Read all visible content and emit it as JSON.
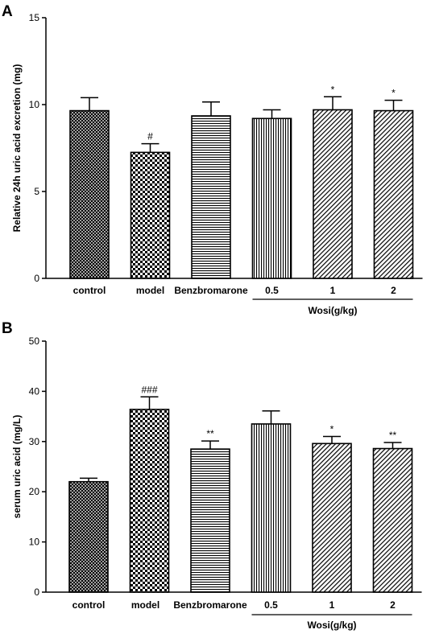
{
  "chart_data": [
    {
      "panel": "A",
      "type": "bar",
      "ylabel": "Relative 24h uric acid excretion (mg)",
      "ylim": [
        0,
        15
      ],
      "yticks": [
        0,
        5,
        10,
        15
      ],
      "categories": [
        "control",
        "model",
        "Benzbromarone",
        "0.5",
        "1",
        "2"
      ],
      "values": [
        9.65,
        7.25,
        9.35,
        9.2,
        9.7,
        9.65
      ],
      "errors": [
        0.75,
        0.5,
        0.8,
        0.5,
        0.75,
        0.6
      ],
      "significance": [
        "",
        "#",
        "",
        "",
        "*",
        "*"
      ],
      "patterns": [
        "crosshatch",
        "checker",
        "horizontal",
        "vertical",
        "diagonal",
        "diagonal"
      ],
      "group_label": "Wosi(g/kg)",
      "group_categories": [
        "0.5",
        "1",
        "2"
      ],
      "grid": false
    },
    {
      "panel": "B",
      "type": "bar",
      "ylabel": "serum uric acid (mg/L)",
      "ylim": [
        0,
        50
      ],
      "yticks": [
        0,
        10,
        20,
        30,
        40,
        50
      ],
      "categories": [
        "control",
        "model",
        "Benzbromarone",
        "0.5",
        "1",
        "2"
      ],
      "values": [
        22,
        36.4,
        28.5,
        33.5,
        29.6,
        28.6
      ],
      "errors": [
        0.7,
        2.5,
        1.6,
        2.6,
        1.4,
        1.2
      ],
      "significance": [
        "",
        "###",
        "**",
        "",
        "*",
        "**"
      ],
      "patterns": [
        "crosshatch",
        "checker",
        "horizontal",
        "vertical",
        "diagonal",
        "diagonal"
      ],
      "group_label": "Wosi(g/kg)",
      "group_categories": [
        "0.5",
        "1",
        "2"
      ],
      "grid": false
    }
  ]
}
